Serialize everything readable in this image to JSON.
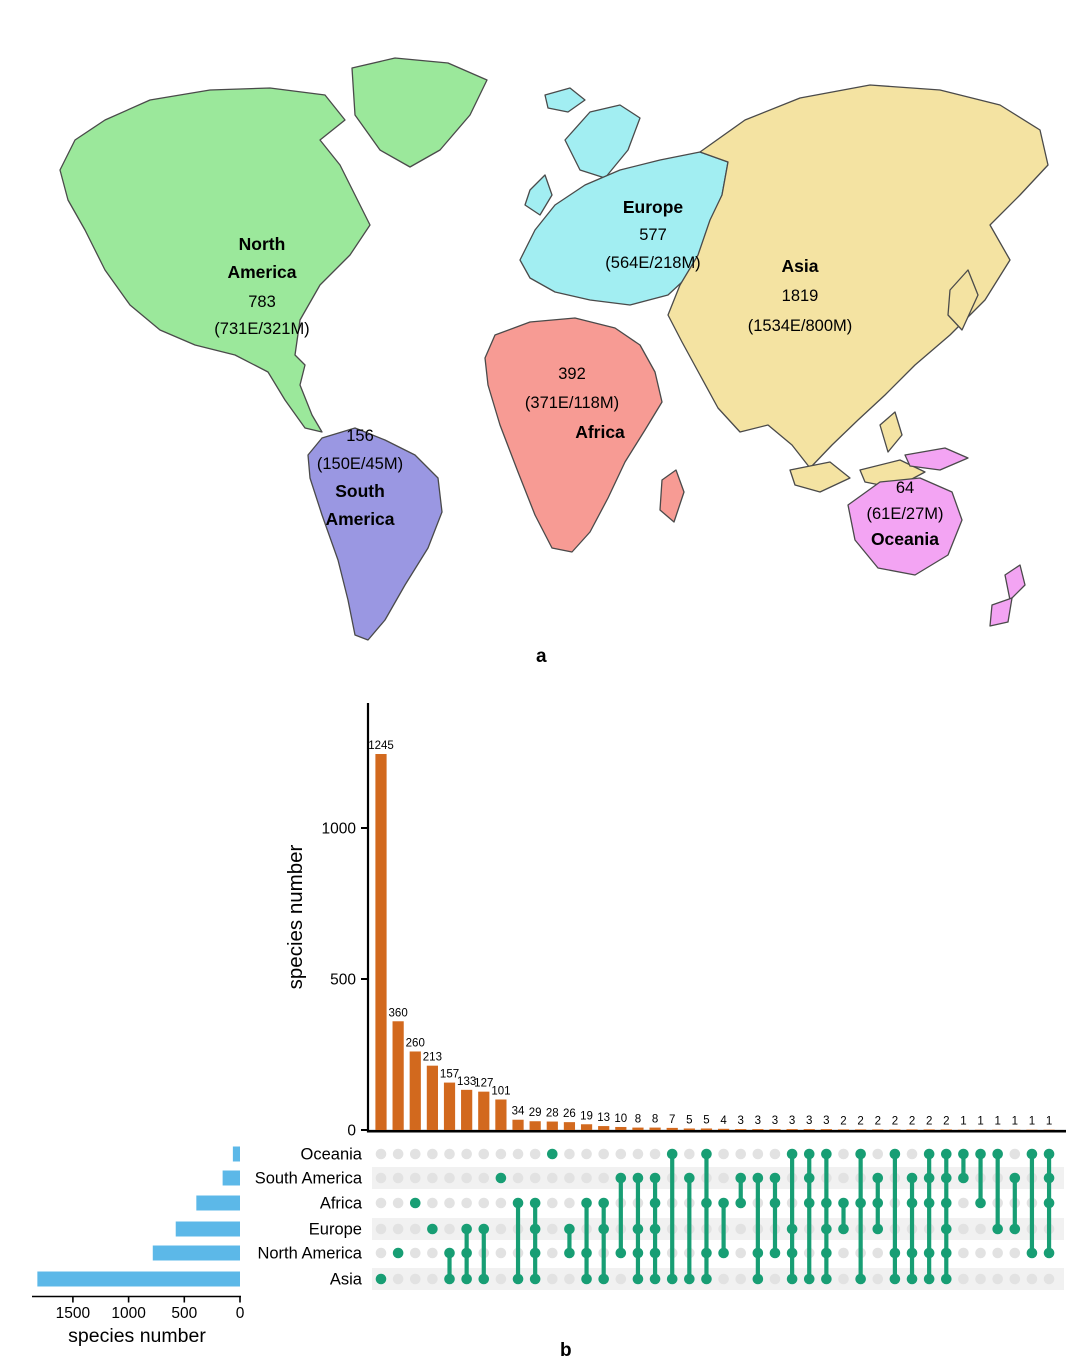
{
  "figure": {
    "panel_a_label": "a",
    "panel_b_label": "b"
  },
  "map": {
    "continents": [
      {
        "name": "North America",
        "name_lines": [
          "North",
          "America"
        ],
        "total": "783",
        "detail": "(731E/321M)",
        "color": "#9be89b"
      },
      {
        "name": "South America",
        "name_lines": [
          "South",
          "America"
        ],
        "total": "156",
        "detail": "(150E/45M)",
        "color": "#9a97e2"
      },
      {
        "name": "Europe",
        "name_lines": [
          "Europe"
        ],
        "total": "577",
        "detail": "(564E/218M)",
        "color": "#a2eef2"
      },
      {
        "name": "Africa",
        "name_lines": [
          "Africa"
        ],
        "total": "392",
        "detail": "(371E/118M)",
        "color": "#f79b94"
      },
      {
        "name": "Asia",
        "name_lines": [
          "Asia"
        ],
        "total": "1819",
        "detail": "(1534E/800M)",
        "color": "#f4e3a2"
      },
      {
        "name": "Oceania",
        "name_lines": [
          "Oceania"
        ],
        "total": "64",
        "detail": "(61E/27M)",
        "color": "#f3a4f3"
      }
    ]
  },
  "chart_data": {
    "type": "upset",
    "title": "",
    "sets": [
      "Oceania",
      "South America",
      "Africa",
      "Europe",
      "North America",
      "Asia"
    ],
    "set_sizes": [
      64,
      156,
      392,
      577,
      783,
      1819
    ],
    "main_axis": {
      "label": "species number",
      "ticks": [
        0,
        500,
        1000
      ],
      "ylim": [
        0,
        1300
      ]
    },
    "set_axis": {
      "label": "species number",
      "ticks": [
        1500,
        1000,
        500,
        0
      ],
      "xlim": [
        1850,
        0
      ]
    },
    "grid": false,
    "colors": {
      "intersection_bar": "#d2691e",
      "set_bar": "#5cb8e8",
      "dot_active": "#189e74",
      "dot_inactive": "#e2e2e2",
      "stripe": "#f1f1f1"
    },
    "intersections": [
      {
        "size": 1245,
        "members": [
          "Asia"
        ]
      },
      {
        "size": 360,
        "members": [
          "North America"
        ]
      },
      {
        "size": 260,
        "members": [
          "Africa"
        ]
      },
      {
        "size": 213,
        "members": [
          "Europe"
        ]
      },
      {
        "size": 157,
        "members": [
          "North America",
          "Asia"
        ]
      },
      {
        "size": 133,
        "members": [
          "Europe",
          "North America",
          "Asia"
        ]
      },
      {
        "size": 127,
        "members": [
          "Europe",
          "Asia"
        ]
      },
      {
        "size": 101,
        "members": [
          "South America"
        ]
      },
      {
        "size": 34,
        "members": [
          "Africa",
          "Asia"
        ]
      },
      {
        "size": 29,
        "members": [
          "Africa",
          "Europe",
          "North America",
          "Asia"
        ]
      },
      {
        "size": 28,
        "members": [
          "Oceania"
        ]
      },
      {
        "size": 26,
        "members": [
          "Europe",
          "North America"
        ]
      },
      {
        "size": 19,
        "members": [
          "Africa",
          "North America",
          "Asia"
        ]
      },
      {
        "size": 13,
        "members": [
          "Africa",
          "Europe",
          "Asia"
        ]
      },
      {
        "size": 10,
        "members": [
          "South America",
          "North America"
        ]
      },
      {
        "size": 8,
        "members": [
          "South America",
          "Europe",
          "North America",
          "Asia"
        ]
      },
      {
        "size": 8,
        "members": [
          "South America",
          "Africa",
          "Europe",
          "North America",
          "Asia"
        ]
      },
      {
        "size": 7,
        "members": [
          "Oceania",
          "Asia"
        ]
      },
      {
        "size": 5,
        "members": [
          "South America",
          "Asia"
        ]
      },
      {
        "size": 5,
        "members": [
          "Oceania",
          "Africa",
          "North America",
          "Asia"
        ]
      },
      {
        "size": 4,
        "members": [
          "Africa",
          "North America"
        ]
      },
      {
        "size": 3,
        "members": [
          "South America",
          "Africa"
        ]
      },
      {
        "size": 3,
        "members": [
          "South America",
          "North America",
          "Asia"
        ]
      },
      {
        "size": 3,
        "members": [
          "South America",
          "Africa",
          "North America"
        ]
      },
      {
        "size": 3,
        "members": [
          "Oceania",
          "Europe",
          "North America",
          "Asia"
        ]
      },
      {
        "size": 3,
        "members": [
          "Oceania",
          "South America",
          "Africa",
          "Asia"
        ]
      },
      {
        "size": 3,
        "members": [
          "Oceania",
          "Africa",
          "Europe",
          "North America",
          "Asia"
        ]
      },
      {
        "size": 2,
        "members": [
          "Africa",
          "Europe"
        ]
      },
      {
        "size": 2,
        "members": [
          "Oceania",
          "Africa",
          "Asia"
        ]
      },
      {
        "size": 2,
        "members": [
          "South America",
          "Africa",
          "Europe"
        ]
      },
      {
        "size": 2,
        "members": [
          "Oceania",
          "North America",
          "Asia"
        ]
      },
      {
        "size": 2,
        "members": [
          "South America",
          "Africa",
          "North America",
          "Asia"
        ]
      },
      {
        "size": 2,
        "members": [
          "Oceania",
          "South America",
          "Africa",
          "North America",
          "Asia"
        ]
      },
      {
        "size": 2,
        "members": [
          "Oceania",
          "South America",
          "Africa",
          "Europe",
          "North America",
          "Asia"
        ]
      },
      {
        "size": 1,
        "members": [
          "Oceania",
          "South America"
        ]
      },
      {
        "size": 1,
        "members": [
          "Oceania",
          "Africa"
        ]
      },
      {
        "size": 1,
        "members": [
          "Oceania",
          "Europe"
        ]
      },
      {
        "size": 1,
        "members": [
          "South America",
          "Europe"
        ]
      },
      {
        "size": 1,
        "members": [
          "Oceania",
          "North America"
        ]
      },
      {
        "size": 1,
        "members": [
          "Oceania",
          "South America",
          "Africa",
          "North America"
        ]
      }
    ]
  }
}
